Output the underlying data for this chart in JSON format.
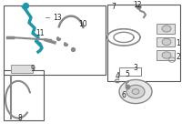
{
  "bg_color": "#ffffff",
  "part_color": "#888888",
  "highlight_color": "#2196a8",
  "label_color": "#222222",
  "line_color": "#555555"
}
